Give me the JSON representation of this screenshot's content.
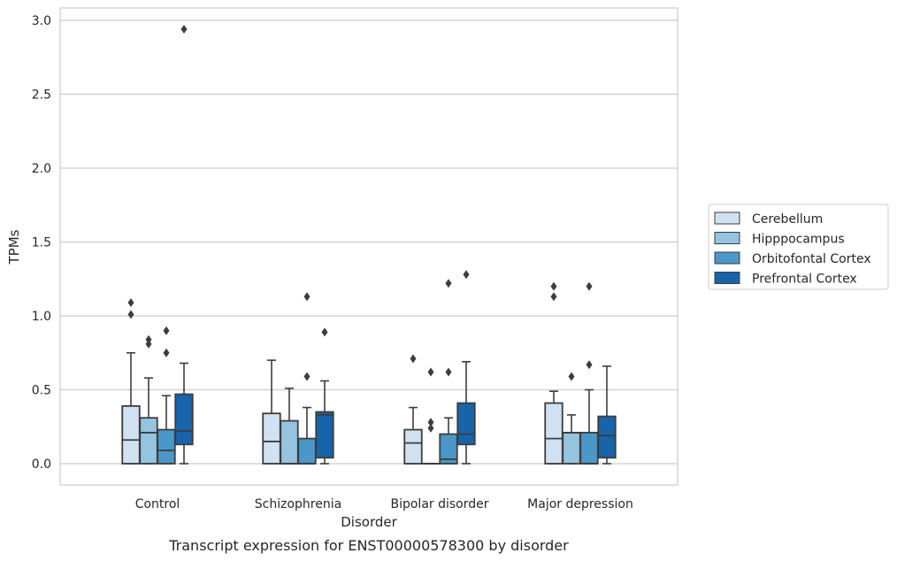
{
  "chart_data": {
    "type": "box",
    "title": "",
    "caption": "Transcript expression for ENST00000578300 by disorder",
    "xlabel": "Disorder",
    "ylabel": "TPMs",
    "ylim": [
      -0.14,
      3.08
    ],
    "yticks": [
      0.0,
      0.5,
      1.0,
      1.5,
      2.0,
      2.5,
      3.0
    ],
    "ytick_labels": [
      "0.0",
      "0.5",
      "1.0",
      "1.5",
      "2.0",
      "2.5",
      "3.0"
    ],
    "grid": "horizontal",
    "legend_position": "right",
    "categories": [
      "Control",
      "Schizophrenia",
      "Bipolar disorder",
      "Major depression"
    ],
    "series": [
      {
        "name": "Cerebellum",
        "color": "#d0e1f2",
        "boxes": [
          {
            "min": 0.0,
            "q1": 0.0,
            "median": 0.16,
            "q3": 0.39,
            "max": 0.75,
            "outliers": [
              1.01,
              1.09
            ]
          },
          {
            "min": 0.0,
            "q1": 0.0,
            "median": 0.15,
            "q3": 0.34,
            "max": 0.7,
            "outliers": []
          },
          {
            "min": 0.0,
            "q1": 0.0,
            "median": 0.14,
            "q3": 0.23,
            "max": 0.38,
            "outliers": [
              0.71
            ]
          },
          {
            "min": 0.0,
            "q1": 0.0,
            "median": 0.17,
            "q3": 0.41,
            "max": 0.49,
            "outliers": [
              1.13,
              1.2
            ]
          }
        ]
      },
      {
        "name": "Hipppocampus",
        "color": "#94c4df",
        "boxes": [
          {
            "min": 0.0,
            "q1": 0.0,
            "median": 0.21,
            "q3": 0.31,
            "max": 0.58,
            "outliers": [
              0.81,
              0.84
            ]
          },
          {
            "min": 0.0,
            "q1": 0.0,
            "median": 0.0,
            "q3": 0.29,
            "max": 0.51,
            "outliers": []
          },
          {
            "min": 0.0,
            "q1": 0.0,
            "median": 0.0,
            "q3": 0.0,
            "max": 0.0,
            "outliers": [
              0.24,
              0.28,
              0.62
            ]
          },
          {
            "min": 0.0,
            "q1": 0.0,
            "median": 0.21,
            "q3": 0.21,
            "max": 0.33,
            "outliers": [
              0.59
            ]
          }
        ]
      },
      {
        "name": "Orbitofontal Cortex",
        "color": "#4a98c9",
        "boxes": [
          {
            "min": 0.0,
            "q1": 0.0,
            "median": 0.09,
            "q3": 0.23,
            "max": 0.46,
            "outliers": [
              0.75,
              0.9
            ]
          },
          {
            "min": 0.0,
            "q1": 0.0,
            "median": 0.0,
            "q3": 0.17,
            "max": 0.38,
            "outliers": [
              0.59,
              1.13
            ]
          },
          {
            "min": 0.0,
            "q1": 0.0,
            "median": 0.03,
            "q3": 0.2,
            "max": 0.31,
            "outliers": [
              0.62,
              1.22
            ]
          },
          {
            "min": 0.0,
            "q1": 0.0,
            "median": 0.0,
            "q3": 0.21,
            "max": 0.5,
            "outliers": [
              0.67,
              1.2
            ]
          }
        ]
      },
      {
        "name": "Prefrontal Cortex",
        "color": "#1764ab",
        "boxes": [
          {
            "min": 0.0,
            "q1": 0.13,
            "median": 0.22,
            "q3": 0.47,
            "max": 0.68,
            "outliers": [
              2.94
            ]
          },
          {
            "min": 0.0,
            "q1": 0.04,
            "median": 0.33,
            "q3": 0.35,
            "max": 0.56,
            "outliers": [
              0.89
            ]
          },
          {
            "min": 0.0,
            "q1": 0.13,
            "median": 0.2,
            "q3": 0.41,
            "max": 0.69,
            "outliers": [
              1.28
            ]
          },
          {
            "min": 0.0,
            "q1": 0.04,
            "median": 0.19,
            "q3": 0.32,
            "max": 0.66,
            "outliers": []
          }
        ]
      }
    ]
  }
}
